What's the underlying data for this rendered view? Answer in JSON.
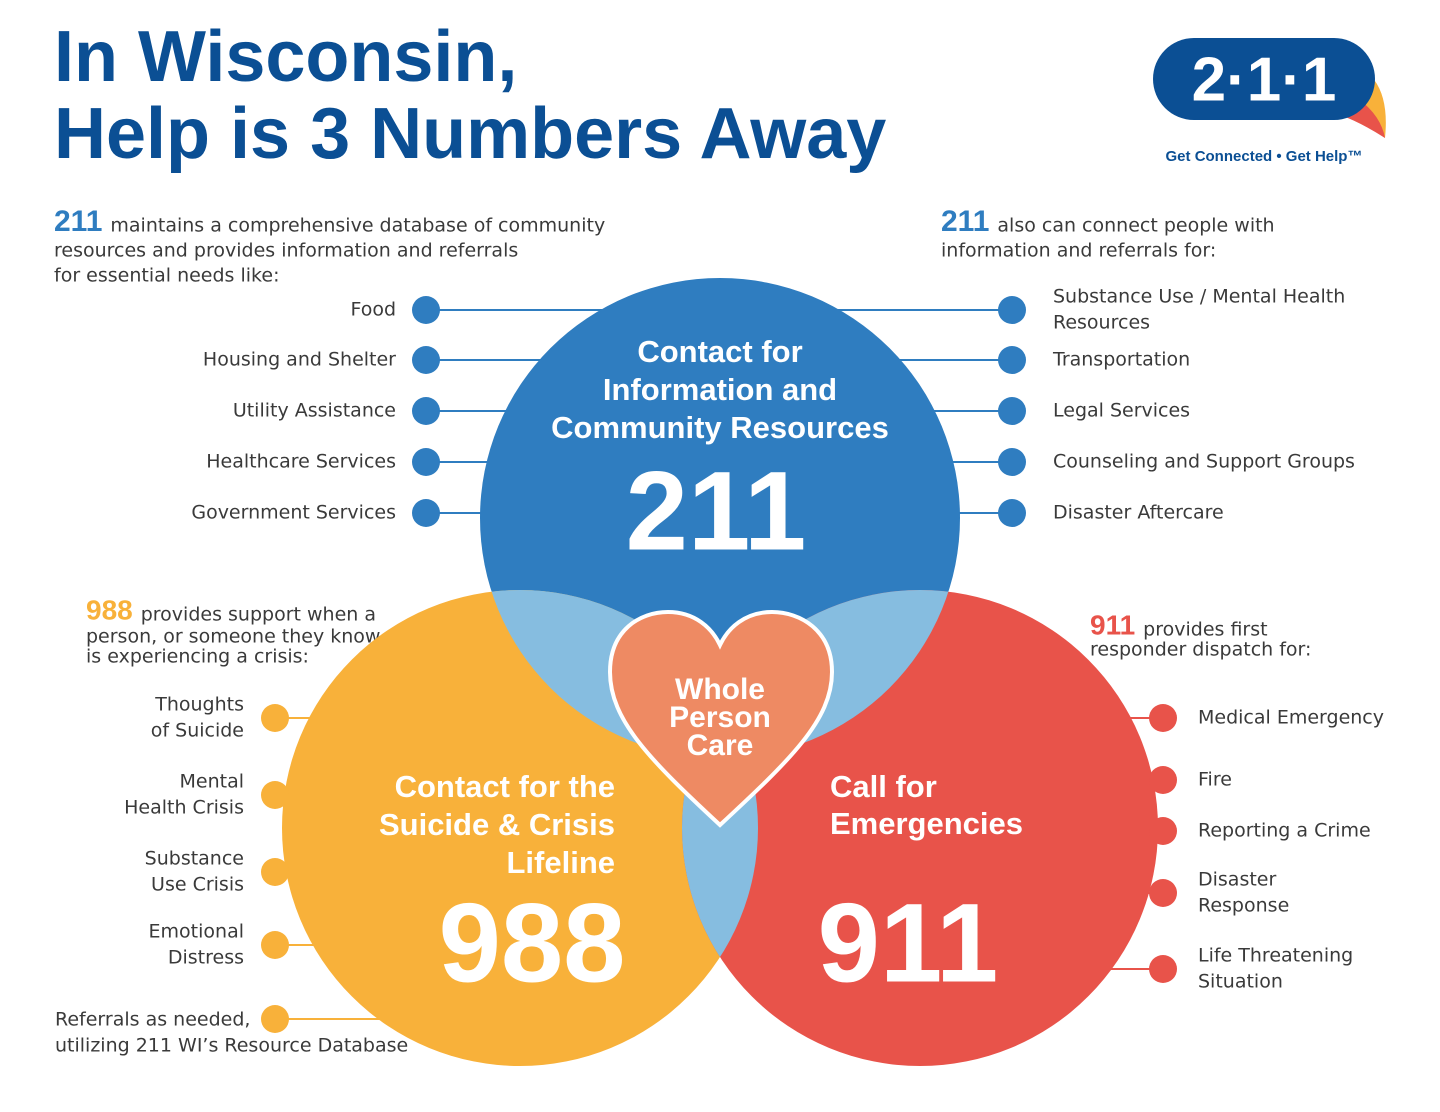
{
  "header": {
    "title_lines": [
      "In Wisconsin,",
      "Help is 3 Numbers Away"
    ]
  },
  "logo": {
    "number": "2·1·1",
    "tagline": "Get Connected • Get Help™"
  },
  "intro_211_left": {
    "number": "211",
    "lines": [
      "maintains a comprehensive database of community",
      "resources and provides information and referrals",
      "for essential needs like:"
    ],
    "items": [
      [
        "Food"
      ],
      [
        "Housing and Shelter"
      ],
      [
        "Utility Assistance"
      ],
      [
        "Healthcare Services"
      ],
      [
        "Government Services"
      ]
    ]
  },
  "intro_211_right": {
    "number": "211",
    "lines": [
      "also can connect people with",
      "information and referrals for:"
    ],
    "items": [
      [
        "Substance Use / Mental Health",
        "Resources"
      ],
      [
        "Transportation"
      ],
      [
        "Legal Services"
      ],
      [
        "Counseling and Support Groups"
      ],
      [
        "Disaster Aftercare"
      ]
    ]
  },
  "intro_988": {
    "number": "988",
    "lines": [
      "provides support when a",
      "person, or someone they know,",
      "is experiencing a crisis:"
    ],
    "items": [
      [
        "Thoughts",
        "of Suicide"
      ],
      [
        "Mental",
        "Health Crisis"
      ],
      [
        "Substance",
        "Use Crisis"
      ],
      [
        "Emotional",
        "Distress"
      ],
      [
        "Referrals as needed,",
        "utilizing 211 WI’s Resource Database"
      ]
    ]
  },
  "intro_911": {
    "number": "911",
    "lines": [
      "provides first",
      "responder dispatch for:"
    ],
    "items": [
      [
        "Medical Emergency"
      ],
      [
        "Fire"
      ],
      [
        "Reporting a Crime"
      ],
      [
        "Disaster",
        "Response"
      ],
      [
        "Life Threatening",
        "Situation"
      ]
    ]
  },
  "circles": {
    "c211": {
      "heading": [
        "Contact for",
        "Information and",
        "Community Resources"
      ],
      "number": "211"
    },
    "c988": {
      "heading": [
        "Contact for the",
        "Suicide & Crisis",
        "Lifeline"
      ],
      "number": "988"
    },
    "c911": {
      "heading": [
        "Call for",
        "Emergencies"
      ],
      "number": "911"
    },
    "heart": [
      "Whole",
      "Person",
      "Care"
    ]
  }
}
